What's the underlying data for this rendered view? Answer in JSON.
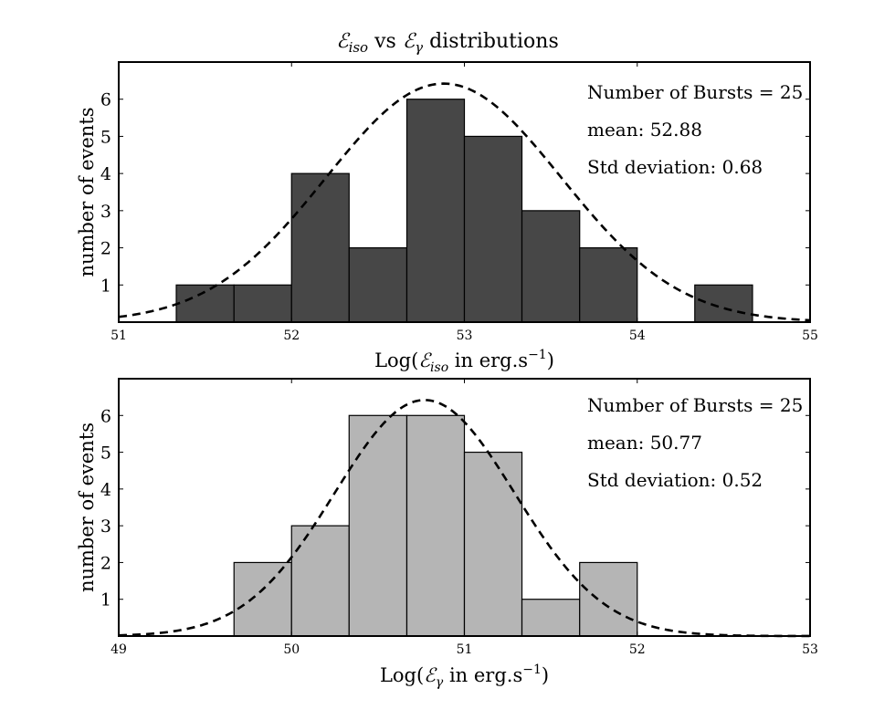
{
  "figure": {
    "title": {
      "main": "ℰ",
      "sub1": "iso",
      "mid": " vs ",
      "main2": "ℰ",
      "sub2": "γ",
      "tail": " distributions"
    }
  },
  "chart_data": [
    {
      "type": "bar",
      "subtype": "histogram",
      "bar_color": "#474747",
      "bin_edges": [
        51.0,
        51.333,
        51.667,
        52.0,
        52.333,
        52.667,
        53.0,
        53.333,
        53.667,
        54.0,
        54.333,
        54.667,
        55.0
      ],
      "values": [
        0,
        1,
        1,
        4,
        2,
        6,
        5,
        3,
        2,
        0,
        1,
        0
      ],
      "xlim": [
        51,
        55
      ],
      "ylim": [
        0,
        7
      ],
      "xticks": [
        "51",
        "52",
        "53",
        "54",
        "55"
      ],
      "yticks": [
        "1",
        "2",
        "3",
        "4",
        "5",
        "6"
      ],
      "ylabel": "number of events",
      "xlabel": {
        "pre": "Log(",
        "sym": "ℰ",
        "sub": "iso",
        "mid": " in erg.s",
        "sup": "−1",
        "post": ")"
      },
      "fit": {
        "type": "gaussian",
        "mean": 52.88,
        "std": 0.68,
        "peak": 6.42,
        "style": "dashed"
      },
      "annotations": [
        "Number of Bursts = 25",
        "mean:  52.88",
        "Std deviation:  0.68"
      ]
    },
    {
      "type": "bar",
      "subtype": "histogram",
      "bar_color": "#b5b5b5",
      "bin_edges": [
        49.0,
        49.333,
        49.667,
        50.0,
        50.333,
        50.667,
        51.0,
        51.333,
        51.667,
        52.0,
        52.333,
        52.667,
        53.0
      ],
      "values": [
        0,
        0,
        2,
        3,
        6,
        6,
        5,
        1,
        2,
        0,
        0,
        0
      ],
      "xlim": [
        49,
        53
      ],
      "ylim": [
        0,
        7
      ],
      "xticks": [
        "49",
        "50",
        "51",
        "52",
        "53"
      ],
      "yticks": [
        "1",
        "2",
        "3",
        "4",
        "5",
        "6"
      ],
      "ylabel": "number of events",
      "xlabel": {
        "pre": "Log(",
        "sym": "ℰ",
        "sub": "γ",
        "mid": " in erg.s",
        "sup": "−1",
        "post": ")"
      },
      "fit": {
        "type": "gaussian",
        "mean": 50.77,
        "std": 0.52,
        "peak": 6.42,
        "style": "dashed"
      },
      "annotations": [
        "Number of Bursts = 25",
        "mean:  50.77",
        "Std deviation:  0.52"
      ]
    }
  ]
}
